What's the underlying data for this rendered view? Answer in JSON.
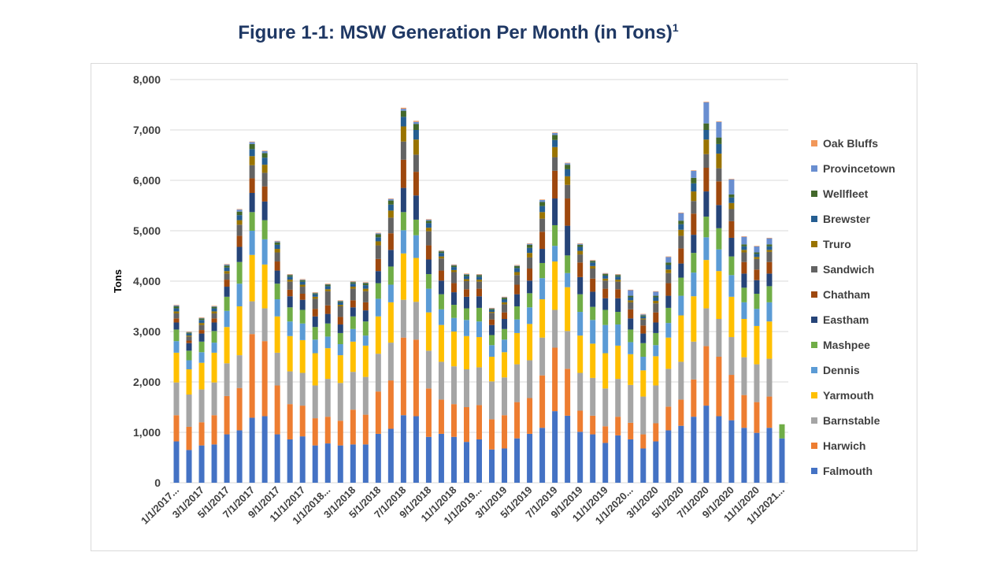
{
  "figure": {
    "title": "Figure 1-1: MSW Generation Per Month (in Tons)",
    "footnote_mark": "1"
  },
  "chart_data": {
    "type": "bar",
    "stacked": true,
    "title": "Figure 1-1: MSW Generation Per Month (in Tons)",
    "xlabel": "",
    "ylabel": "Tons",
    "ylim": [
      0,
      8000
    ],
    "yticks": [
      0,
      1000,
      2000,
      3000,
      4000,
      5000,
      6000,
      7000,
      8000
    ],
    "ytick_labels": [
      "0",
      "1,000",
      "2,000",
      "3,000",
      "4,000",
      "5,000",
      "6,000",
      "7,000",
      "8,000"
    ],
    "grid": true,
    "legend_position": "right",
    "x_tick_labels": [
      {
        "index": 0,
        "label": "1/1/2017..."
      },
      {
        "index": 2,
        "label": "3/1/2017"
      },
      {
        "index": 4,
        "label": "5/1/2017"
      },
      {
        "index": 6,
        "label": "7/1/2017"
      },
      {
        "index": 8,
        "label": "9/1/2017"
      },
      {
        "index": 10,
        "label": "11/1/2017"
      },
      {
        "index": 12,
        "label": "1/1/2018..."
      },
      {
        "index": 14,
        "label": "3/1/2018"
      },
      {
        "index": 16,
        "label": "5/1/2018"
      },
      {
        "index": 18,
        "label": "7/1/2018"
      },
      {
        "index": 20,
        "label": "9/1/2018"
      },
      {
        "index": 22,
        "label": "11/1/2018"
      },
      {
        "index": 24,
        "label": "1/1/2019..."
      },
      {
        "index": 26,
        "label": "3/1/2019"
      },
      {
        "index": 28,
        "label": "5/1/2019"
      },
      {
        "index": 30,
        "label": "7/1/2019"
      },
      {
        "index": 32,
        "label": "9/1/2019"
      },
      {
        "index": 34,
        "label": "11/1/2019"
      },
      {
        "index": 36,
        "label": "1/1/2020..."
      },
      {
        "index": 38,
        "label": "3/1/2020"
      },
      {
        "index": 40,
        "label": "5/1/2020"
      },
      {
        "index": 42,
        "label": "7/1/2020"
      },
      {
        "index": 44,
        "label": "9/1/2020"
      },
      {
        "index": 46,
        "label": "11/1/2020"
      },
      {
        "index": 48,
        "label": "1/1/2021..."
      }
    ],
    "series": [
      {
        "name": "Falmouth",
        "color": "#4472c4",
        "values": [
          820,
          650,
          740,
          760,
          960,
          1040,
          1290,
          1320,
          960,
          860,
          920,
          740,
          780,
          740,
          760,
          760,
          970,
          1070,
          1340,
          1320,
          910,
          970,
          910,
          810,
          860,
          660,
          680,
          880,
          970,
          1090,
          1420,
          1330,
          1010,
          960,
          790,
          940,
          860,
          680,
          820,
          1040,
          1130,
          1310,
          1530,
          1320,
          1240,
          1090,
          990,
          1090,
          880
        ]
      },
      {
        "name": "Harwich",
        "color": "#ed7d31",
        "values": [
          520,
          460,
          460,
          580,
          760,
          840,
          1660,
          1490,
          970,
          700,
          610,
          540,
          530,
          490,
          690,
          590,
          840,
          960,
          1540,
          1520,
          960,
          680,
          650,
          690,
          680,
          600,
          660,
          720,
          710,
          1040,
          1260,
          930,
          420,
          370,
          330,
          370,
          330,
          280,
          360,
          470,
          520,
          740,
          1180,
          1180,
          900,
          650,
          610,
          620,
          0
        ]
      },
      {
        "name": "Barnstable",
        "color": "#a5a5a5",
        "values": [
          650,
          640,
          650,
          650,
          650,
          650,
          650,
          650,
          650,
          650,
          650,
          650,
          750,
          750,
          750,
          750,
          750,
          750,
          750,
          750,
          750,
          750,
          750,
          750,
          750,
          750,
          750,
          750,
          750,
          750,
          750,
          750,
          750,
          750,
          750,
          750,
          750,
          750,
          750,
          750,
          750,
          750,
          750,
          750,
          750,
          750,
          750,
          750,
          0
        ]
      },
      {
        "name": "Yarmouth",
        "color": "#ffc000",
        "values": [
          590,
          500,
          530,
          590,
          720,
          970,
          920,
          870,
          720,
          700,
          650,
          640,
          610,
          550,
          600,
          620,
          740,
          800,
          920,
          870,
          760,
          730,
          690,
          660,
          600,
          490,
          500,
          620,
          720,
          760,
          960,
          870,
          740,
          680,
          700,
          660,
          610,
          520,
          580,
          620,
          920,
          900,
          960,
          950,
          800,
          760,
          760,
          740,
          0
        ]
      },
      {
        "name": "Dennis",
        "color": "#5b9bd5",
        "values": [
          230,
          180,
          210,
          200,
          320,
          450,
          480,
          500,
          340,
          290,
          330,
          270,
          230,
          220,
          250,
          200,
          350,
          350,
          460,
          450,
          470,
          310,
          270,
          320,
          310,
          230,
          250,
          270,
          330,
          420,
          310,
          280,
          470,
          470,
          560,
          420,
          240,
          270,
          220,
          290,
          390,
          470,
          450,
          430,
          430,
          330,
          340,
          380,
          0
        ]
      },
      {
        "name": "Mashpee",
        "color": "#70ad47",
        "values": [
          230,
          190,
          210,
          230,
          280,
          430,
          370,
          380,
          310,
          280,
          270,
          250,
          260,
          220,
          250,
          280,
          310,
          360,
          360,
          310,
          290,
          300,
          260,
          230,
          270,
          200,
          210,
          260,
          280,
          300,
          410,
          350,
          350,
          260,
          300,
          250,
          250,
          270,
          240,
          300,
          360,
          390,
          410,
          420,
          370,
          290,
          300,
          320,
          280
        ]
      },
      {
        "name": "Eastham",
        "color": "#264478",
        "values": [
          140,
          150,
          160,
          170,
          200,
          300,
          380,
          370,
          260,
          220,
          200,
          210,
          190,
          170,
          180,
          220,
          240,
          330,
          480,
          480,
          290,
          270,
          250,
          230,
          230,
          200,
          200,
          240,
          250,
          280,
          530,
          590,
          340,
          300,
          230,
          270,
          220,
          190,
          210,
          240,
          280,
          360,
          500,
          460,
          370,
          280,
          270,
          250,
          0
        ]
      },
      {
        "name": "Chatham",
        "color": "#9e480e",
        "values": [
          80,
          50,
          70,
          80,
          140,
          220,
          290,
          300,
          180,
          130,
          120,
          150,
          170,
          150,
          140,
          160,
          240,
          330,
          560,
          470,
          280,
          200,
          180,
          150,
          150,
          110,
          130,
          190,
          240,
          340,
          550,
          540,
          290,
          260,
          190,
          180,
          180,
          160,
          200,
          250,
          300,
          420,
          470,
          470,
          330,
          230,
          210,
          230,
          0
        ]
      },
      {
        "name": "Sandwich",
        "color": "#636363",
        "values": [
          100,
          80,
          100,
          100,
          120,
          220,
          260,
          270,
          180,
          160,
          140,
          200,
          280,
          210,
          230,
          220,
          270,
          310,
          360,
          340,
          280,
          240,
          220,
          160,
          140,
          130,
          160,
          190,
          220,
          260,
          270,
          270,
          160,
          200,
          160,
          150,
          140,
          120,
          180,
          200,
          250,
          250,
          270,
          260,
          240,
          190,
          210,
          200,
          0
        ]
      },
      {
        "name": "Truro",
        "color": "#997300",
        "values": [
          40,
          20,
          40,
          40,
          50,
          90,
          180,
          160,
          70,
          40,
          40,
          40,
          40,
          30,
          40,
          50,
          80,
          140,
          300,
          300,
          70,
          40,
          40,
          40,
          40,
          20,
          40,
          60,
          90,
          130,
          200,
          170,
          70,
          50,
          40,
          40,
          40,
          20,
          50,
          70,
          120,
          190,
          290,
          290,
          120,
          50,
          40,
          40,
          0
        ]
      },
      {
        "name": "Brewster",
        "color": "#255e91",
        "values": [
          60,
          40,
          60,
          60,
          70,
          100,
          140,
          140,
          80,
          60,
          60,
          50,
          60,
          50,
          60,
          70,
          80,
          120,
          190,
          190,
          90,
          70,
          60,
          60,
          60,
          40,
          60,
          80,
          100,
          120,
          140,
          140,
          80,
          70,
          60,
          60,
          60,
          40,
          70,
          90,
          110,
          160,
          190,
          190,
          110,
          70,
          60,
          70,
          0
        ]
      },
      {
        "name": "Wellfleet",
        "color": "#43682b",
        "values": [
          40,
          20,
          30,
          30,
          40,
          70,
          100,
          90,
          50,
          30,
          30,
          20,
          30,
          20,
          30,
          40,
          60,
          80,
          120,
          120,
          50,
          30,
          30,
          30,
          30,
          20,
          30,
          40,
          60,
          80,
          100,
          90,
          40,
          30,
          30,
          30,
          30,
          20,
          30,
          50,
          70,
          110,
          130,
          130,
          60,
          40,
          30,
          40,
          0
        ]
      },
      {
        "name": "Provincetown",
        "color": "#698ed0",
        "values": [
          20,
          10,
          10,
          10,
          20,
          40,
          40,
          40,
          20,
          10,
          10,
          10,
          10,
          10,
          10,
          10,
          20,
          30,
          40,
          40,
          20,
          10,
          10,
          10,
          10,
          10,
          10,
          10,
          20,
          40,
          40,
          30,
          20,
          10,
          10,
          10,
          110,
          20,
          80,
          110,
          150,
          140,
          420,
          310,
          300,
          150,
          120,
          120,
          0
        ]
      },
      {
        "name": "Oak Bluffs",
        "color": "#f1975a",
        "values": [
          10,
          10,
          10,
          10,
          10,
          10,
          10,
          10,
          10,
          10,
          10,
          10,
          10,
          10,
          10,
          10,
          10,
          10,
          20,
          20,
          10,
          10,
          10,
          10,
          10,
          10,
          10,
          10,
          10,
          10,
          10,
          10,
          10,
          10,
          10,
          10,
          10,
          10,
          10,
          10,
          10,
          10,
          10,
          10,
          10,
          10,
          10,
          10,
          0
        ]
      }
    ]
  }
}
